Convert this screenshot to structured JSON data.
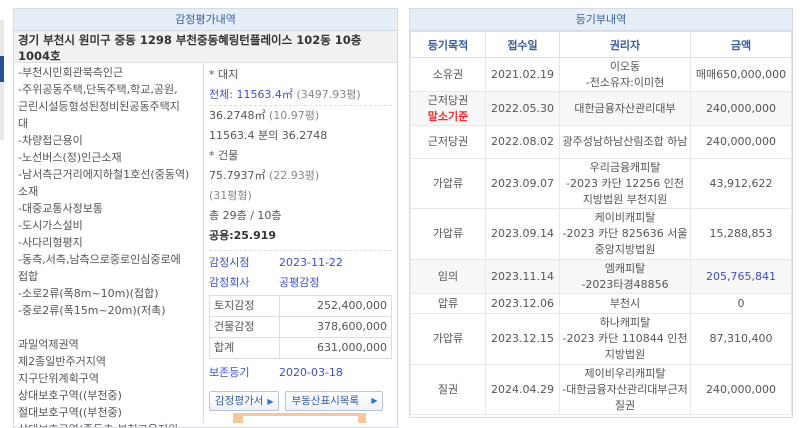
{
  "appraisal": {
    "title": "감정평가내역",
    "address": "경기 부천시 원미구 중동 1298 부천중동혜링턴플레이스 102동 10층 1004호",
    "notes": [
      "-부천시민회관북측인근",
      "-주위공동주택,단독주택,학교,공원,",
      "근린시설등형성된정비된공동주택지",
      "대",
      "-차량접근용이",
      "-노선버스(정)인근소재",
      "-남서측근거리에지하철1호선(중동역)",
      "소재",
      "-대중교통사정보통",
      "-도시가스설비",
      "-사다리형평지",
      "-동측,서측,남측으로중로인심중로에",
      "접합",
      "-소로2류(폭8m~10m)(접합)",
      "-중로2류(폭15m~20m)(저촉)",
      "",
      "과밀억제권역",
      "제2종일반주거지역",
      "지구단위계획구역",
      "상대보호구역((부천중)",
      "절대보호구역((부천중)",
      "상대보호구역(중동초-부천교육지원"
    ],
    "land_label": "* 대지",
    "land_total": "전체: 11563.4㎡",
    "land_total_pyeong": "(3497.93평)",
    "land_share": "36.2748㎡",
    "land_share_pyeong": "(10.97평)",
    "land_ratio": "11563.4 분의 36.2748",
    "building_label": "* 건물",
    "building_area": "75.7937㎡",
    "building_pyeong": "(22.93평)",
    "building_type": "(31평형)",
    "floors": "총 29층 / 10층",
    "common": "공용:25.919",
    "date_label": "감정시점",
    "date": "2023-11-22",
    "company_label": "감정회사",
    "company": "공평감정",
    "values": [
      {
        "label": "토지감정",
        "amount": "252,400,000"
      },
      {
        "label": "건물감정",
        "amount": "378,600,000"
      },
      {
        "label": "합계",
        "amount": "631,000,000"
      }
    ],
    "preserve_label": "보존등기",
    "preserve_date": "2020-03-18",
    "btn_report": "감정평가서",
    "btn_list": "부동산표시목록"
  },
  "registry": {
    "title": "등기부내역",
    "columns": [
      "등기목적",
      "접수일",
      "권리자",
      "금액"
    ],
    "rows": [
      {
        "purpose": "소유권",
        "purpose_note": "",
        "date": "2021.02.19",
        "holder": "이오동\n-전소유자:이미현",
        "amount": "매매650,000,000",
        "hl": false
      },
      {
        "purpose": "근저당권",
        "purpose_note": "말소기준",
        "date": "2022.05.30",
        "holder": "대한금융자산관리대부",
        "amount": "240,000,000",
        "hl": false
      },
      {
        "purpose": "근저당권",
        "purpose_note": "",
        "date": "2022.08.02",
        "holder": "광주성남하남산림조합 하남",
        "amount": "240,000,000",
        "hl": false
      },
      {
        "purpose": "가압류",
        "purpose_note": "",
        "date": "2023.09.07",
        "holder": "우리금융캐피탈\n-2023 카단 12256 인천지방법원 부천지원",
        "amount": "43,912,622",
        "hl": false
      },
      {
        "purpose": "가압류",
        "purpose_note": "",
        "date": "2023.09.14",
        "holder": "케이비캐피탈\n-2023 카단 825636 서울중앙지방법원",
        "amount": "15,288,853",
        "hl": false
      },
      {
        "purpose": "임의",
        "purpose_note": "",
        "date": "2023.11.14",
        "holder": "엠캐피탈\n-2023타경48856",
        "amount": "205,765,841",
        "hl": true
      },
      {
        "purpose": "압류",
        "purpose_note": "",
        "date": "2023.12.06",
        "holder": "부천시",
        "amount": "0",
        "hl": false
      },
      {
        "purpose": "가압류",
        "purpose_note": "",
        "date": "2023.12.15",
        "holder": "하나캐피탈\n-2023 카단 110844 인천지방법원",
        "amount": "87,310,400",
        "hl": false
      },
      {
        "purpose": "질권",
        "purpose_note": "",
        "date": "2024.04.29",
        "holder": "제이비우리캐피탈\n-대한금융자산관리대부근저질권",
        "amount": "240,000,000",
        "hl": false
      }
    ]
  },
  "colors": {
    "header_bg": "#e6eef8",
    "header_text": "#3a5c9c",
    "link": "#3f4fc9",
    "alert": "#f03030"
  }
}
